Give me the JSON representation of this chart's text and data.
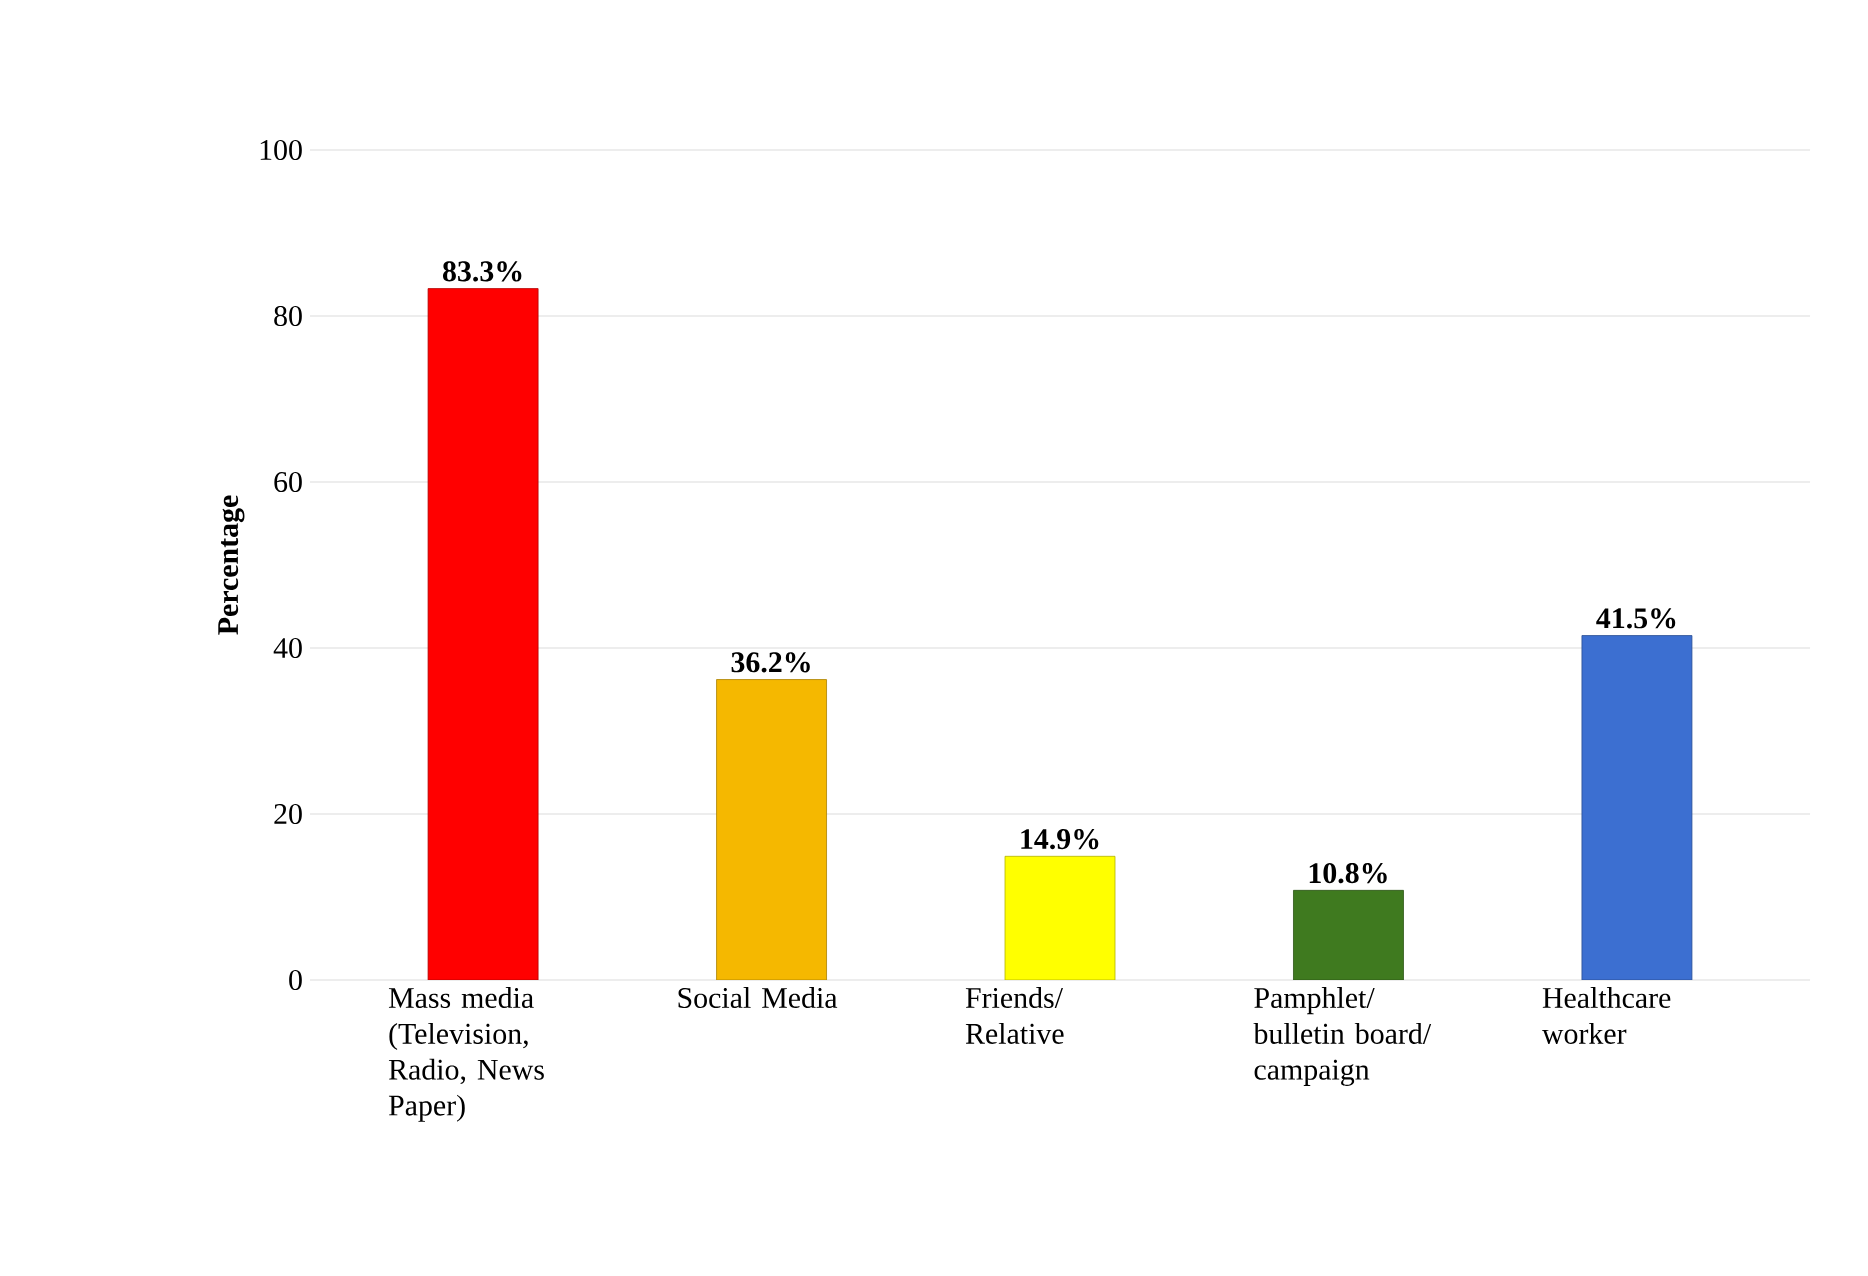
{
  "chart_data": {
    "type": "bar",
    "ylabel": "Percentage",
    "categories": [
      "Mass media (Television, Radio, News Paper)",
      "Social Media",
      "Friends/ Relative",
      "Pamphlet/ bulletin board/ campaign",
      "Healthcare worker"
    ],
    "values": [
      83.3,
      36.2,
      14.9,
      10.8,
      41.5
    ],
    "colors": [
      "#ff0000",
      "#f5b800",
      "#ffff00",
      "#3f7a1f",
      "#3c6fd1"
    ],
    "value_labels": [
      "83.3%",
      "36.2%",
      "14.9%",
      "10.8%",
      "41.5%"
    ],
    "ylim": [
      0,
      100
    ],
    "yticks": [
      0,
      20,
      40,
      60,
      80,
      100
    ],
    "grid": "y"
  }
}
